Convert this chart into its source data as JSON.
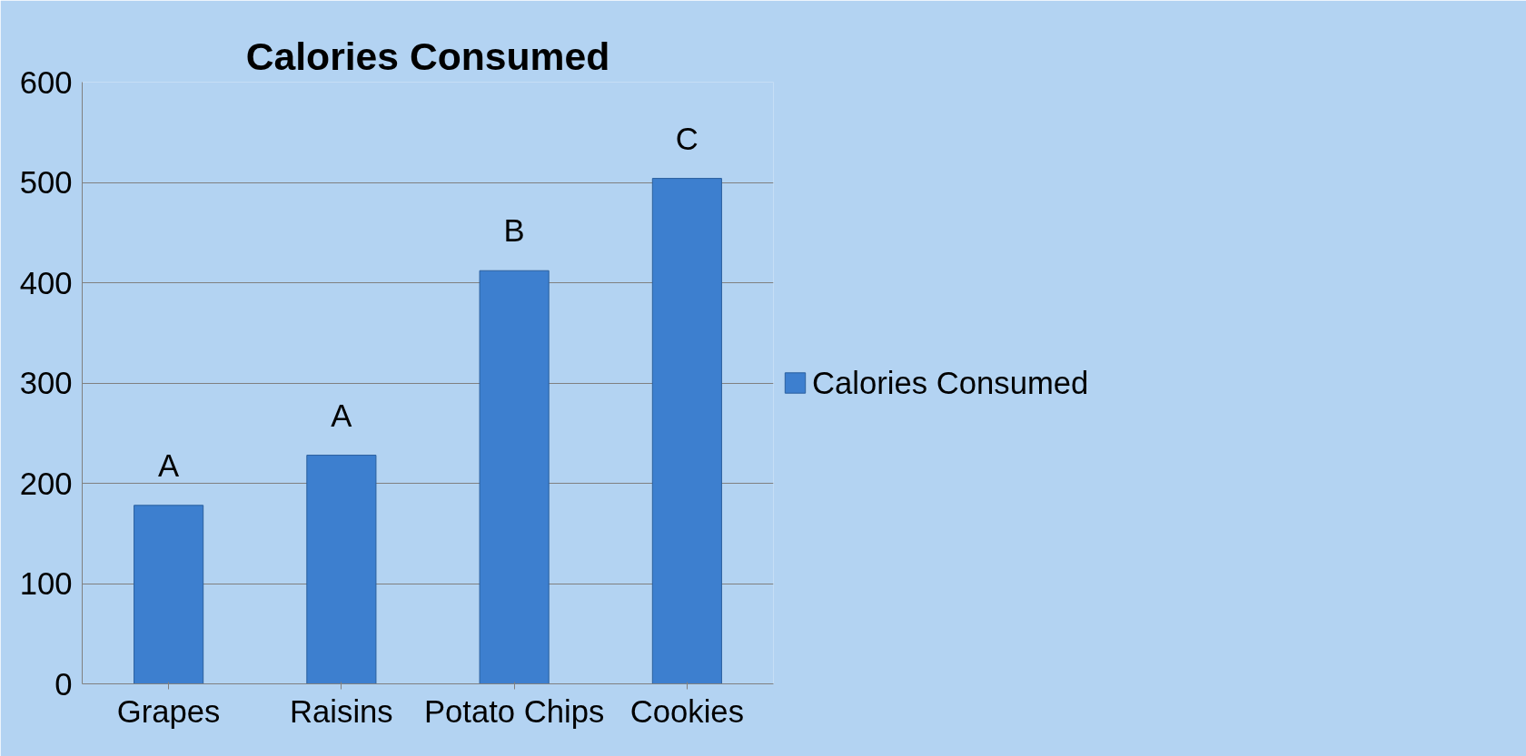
{
  "chart_data": {
    "type": "bar",
    "title": "Calories Consumed",
    "categories": [
      "Grapes",
      "Raisins",
      "Potato Chips",
      "Cookies"
    ],
    "series": [
      {
        "name": "Calories Consumed",
        "color": "#3d7fcf",
        "values": [
          178,
          228,
          412,
          504
        ]
      }
    ],
    "ylim": [
      0,
      600
    ],
    "yticks": [
      0,
      100,
      200,
      300,
      400,
      500,
      600
    ],
    "grid": "y",
    "legend": "right",
    "annotations": [
      "A",
      "A",
      "B",
      "C"
    ]
  }
}
